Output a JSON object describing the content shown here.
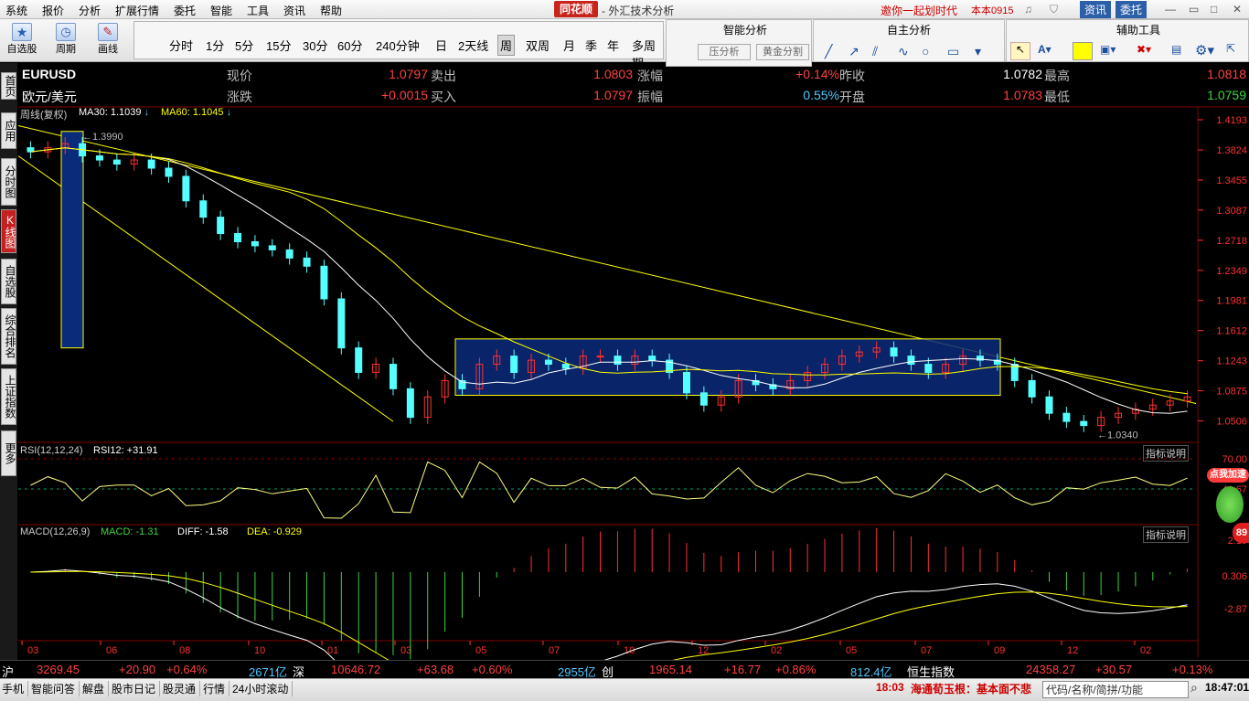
{
  "menu": [
    "系统",
    "报价",
    "分析",
    "扩展行情",
    "委托",
    "智能",
    "工具",
    "资讯",
    "帮助"
  ],
  "brand": "同花顺",
  "app_title": "外汇技术分析",
  "promo": "邀你一起划时代",
  "version": "本本0915",
  "top_right_buttons": [
    "资讯",
    "委托"
  ],
  "toolbar": {
    "left_buttons": [
      "自选股",
      "周期",
      "画线"
    ],
    "periods": [
      "分时",
      "1分",
      "5分",
      "15分",
      "30分",
      "60分",
      "240分钟",
      "日",
      "2天线",
      "周",
      "双周",
      "月",
      "季",
      "年",
      "多周期"
    ],
    "selected_period": "周",
    "sections": [
      "智能分析",
      "自主分析",
      "辅助工具"
    ],
    "smart_buttons": [
      "压分析",
      "黄金分割"
    ],
    "colors": {
      "highlight_swatch": "#ffff00"
    }
  },
  "sidebar": {
    "tabs": [
      "首页",
      "应用",
      "分时图",
      "K线图",
      "自选股",
      "综合排名",
      "上证指数",
      "更多"
    ],
    "active": "K线图"
  },
  "quote": {
    "symbol": "EURUSD",
    "name": "欧元/美元",
    "row1": [
      {
        "label": "现价",
        "value": "1.0797"
      },
      {
        "label": "卖出",
        "value": "1.0803"
      },
      {
        "label": "涨幅",
        "value": "+0.14%"
      },
      {
        "label": "昨收",
        "value": "1.0782"
      },
      {
        "label": "最高",
        "value": "1.0818"
      }
    ],
    "row2": [
      {
        "label": "涨跌",
        "value": "+0.0015"
      },
      {
        "label": "买入",
        "value": "1.0797"
      },
      {
        "label": "振幅",
        "value": "0.55%"
      },
      {
        "label": "开盘",
        "value": "1.0783"
      },
      {
        "label": "最低",
        "value": "1.0759"
      }
    ]
  },
  "main_indicator": {
    "title": "周线(复权)",
    "ma30_label": "MA30:",
    "ma30": "1.1039",
    "ma60_label": "MA60:",
    "ma60": "1.1045"
  },
  "rsi_indicator": {
    "title": "RSI(12,12,24)",
    "rsi12": "RSI12: +31.91",
    "explain": "指标说明"
  },
  "macd_indicator": {
    "title": "MACD(12,26,9)",
    "macd": "MACD: -1.31",
    "diff": "DIFF: -1.58",
    "dea": "DEA: -0.929",
    "explain": "指标说明"
  },
  "chart_data": {
    "type": "candlestick",
    "price_axis_ticks": [
      "1.4193",
      "1.3824",
      "1.3455",
      "1.3087",
      "1.2718",
      "1.2349",
      "1.1981",
      "1.1612",
      "1.1243",
      "1.0875",
      "1.0506"
    ],
    "ylim": [
      1.03,
      1.4193
    ],
    "x_ticks": [
      "03",
      "06",
      "08",
      "10",
      "01",
      "03",
      "05",
      "07",
      "10",
      "12",
      "02",
      "05",
      "07",
      "09",
      "12",
      "02"
    ],
    "annotations": {
      "high": "1.3990",
      "low": "1.0340"
    },
    "rsi_ticks": [
      "70.00",
      "41.67"
    ],
    "macd_ticks": [
      "2.19",
      "0.306",
      "-2.87"
    ],
    "closes_approx": [
      1.38,
      1.385,
      1.39,
      1.375,
      1.37,
      1.365,
      1.37,
      1.36,
      1.35,
      1.32,
      1.3,
      1.28,
      1.27,
      1.265,
      1.26,
      1.25,
      1.24,
      1.2,
      1.14,
      1.11,
      1.12,
      1.09,
      1.055,
      1.08,
      1.1,
      1.09,
      1.12,
      1.13,
      1.11,
      1.125,
      1.12,
      1.115,
      1.13,
      1.13,
      1.12,
      1.13,
      1.125,
      1.11,
      1.085,
      1.07,
      1.08,
      1.1,
      1.095,
      1.09,
      1.1,
      1.11,
      1.12,
      1.13,
      1.135,
      1.14,
      1.13,
      1.12,
      1.11,
      1.12,
      1.13,
      1.125,
      1.12,
      1.1,
      1.08,
      1.06,
      1.05,
      1.045,
      1.055,
      1.06,
      1.065,
      1.07,
      1.075,
      1.08
    ]
  },
  "status": {
    "sh": {
      "label": "沪",
      "value": "3269.45",
      "chg": "+20.90",
      "pct": "+0.64%",
      "amt": "2671亿"
    },
    "sz": {
      "label": "深",
      "value": "10646.72",
      "chg": "+63.68",
      "pct": "+0.60%",
      "amt": "2955亿"
    },
    "cy": {
      "label": "创",
      "value": "1965.14",
      "chg": "+16.77",
      "pct": "+0.86%",
      "amt": "812.4亿"
    },
    "hs": {
      "label": "恒生指数",
      "value": "24358.27",
      "chg": "+30.57",
      "pct": "+0.13%"
    }
  },
  "taskbar": {
    "items": [
      "手机",
      "智能问答",
      "解盘",
      "股市日记",
      "股灵通",
      "行情",
      "24小时滚动"
    ],
    "news_time": "18:03",
    "news": "海通荀玉根：基本面不悲",
    "search_hint": "代码/名称/简拼/功能",
    "clock": "18:47:01"
  },
  "float_badge": {
    "label": "点我加速",
    "value": "89"
  }
}
